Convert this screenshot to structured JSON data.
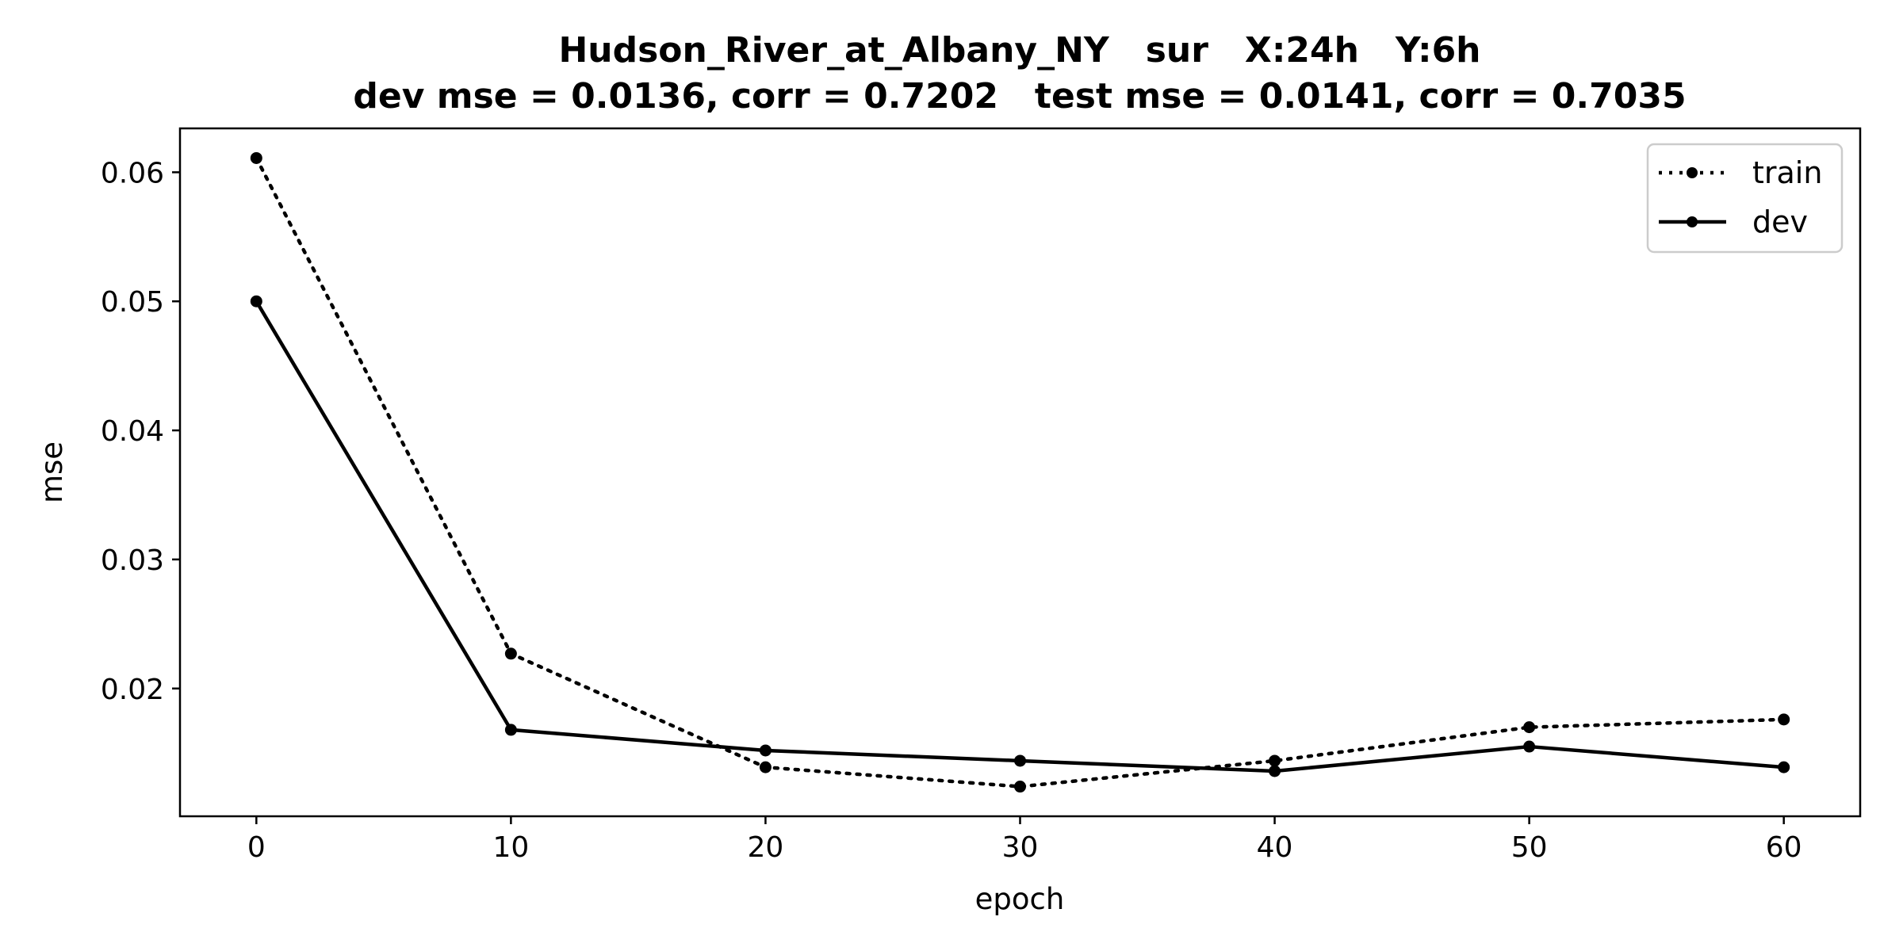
{
  "chart_data": {
    "type": "line",
    "title": "Hudson_River_at_Albany_NY   sur   X:24h   Y:6h",
    "subtitle": "dev mse = 0.0136, corr = 0.7202   test mse = 0.0141, corr = 0.7035",
    "xlabel": "epoch",
    "ylabel": "mse",
    "xlim": [
      -3,
      63
    ],
    "ylim": [
      0.0101,
      0.0634
    ],
    "xticks": [
      0,
      10,
      20,
      30,
      40,
      50,
      60
    ],
    "yticks": [
      0.02,
      0.03,
      0.04,
      0.05,
      0.06
    ],
    "xtick_labels": [
      "0",
      "10",
      "20",
      "30",
      "40",
      "50",
      "60"
    ],
    "ytick_labels": [
      "0.02",
      "0.03",
      "0.04",
      "0.05",
      "0.06"
    ],
    "grid": false,
    "legend_position": "top-right",
    "x": [
      0,
      10,
      20,
      30,
      40,
      50,
      60
    ],
    "series": [
      {
        "name": "train",
        "line_style": "dotted",
        "color": "#000000",
        "values": [
          0.0611,
          0.0227,
          0.0139,
          0.0124,
          0.0144,
          0.017,
          0.0176
        ]
      },
      {
        "name": "dev",
        "line_style": "solid",
        "color": "#000000",
        "values": [
          0.05,
          0.0168,
          0.0152,
          0.0144,
          0.0136,
          0.0155,
          0.0139
        ]
      }
    ]
  }
}
